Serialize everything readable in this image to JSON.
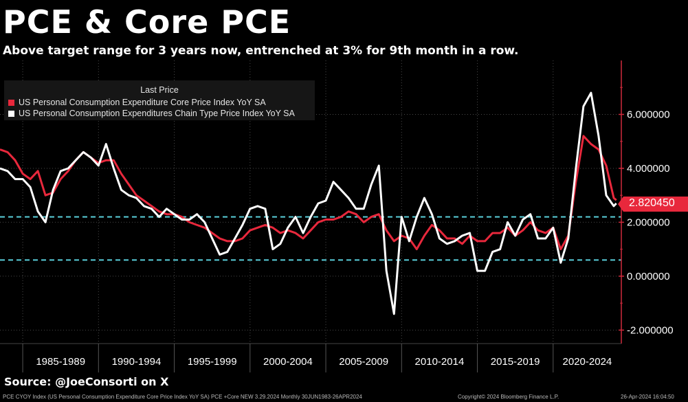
{
  "title": "PCE & Core PCE",
  "subtitle": "Above target range for 3 years now, entrenched at 3% for 9th month in a row.",
  "source": "Source: @JoeConsorti on X",
  "footer": {
    "left": "PCE CYOY Index (US Personal Consumption Expenditure Core Price Index YoY SA) PCE +Core NEW 3.29.2024  Monthly 30JUN1983-26APR2024",
    "center": "Copyright© 2024 Bloomberg Finance L.P.",
    "right": "26-Apr-2024 16:04:50"
  },
  "legend": {
    "header": "Last Price",
    "items": [
      {
        "label": "US Personal Consumption Expenditure Core Price Index YoY SA",
        "color": "#e8283c"
      },
      {
        "label": "US Personal Consumption Expenditures Chain Type Price Index YoY SA",
        "color": "#ffffff"
      }
    ]
  },
  "last_value_label": "2.820450",
  "colors": {
    "core": "#e8283c",
    "headline": "#ffffff",
    "reference": "#5ad0dc",
    "axis": "#d02a3c",
    "grid": "#4a4a4a"
  },
  "chart_data": {
    "type": "line",
    "x_tick_labels": [
      "1985-1989",
      "1990-1994",
      "1995-1999",
      "2000-2004",
      "2005-2009",
      "2010-2014",
      "2015-2019",
      "2020-2024"
    ],
    "y_tick_labels": [
      "6.000000",
      "4.000000",
      "2.000000",
      "0.000000",
      "-2.000000"
    ],
    "xlim": [
      1983.5,
      2024.5
    ],
    "ylim": [
      -2.5,
      8.0
    ],
    "reference_lines": [
      2.2,
      0.6
    ],
    "grid": true,
    "legend_position": "top-left",
    "series": [
      {
        "name": "US Personal Consumption Expenditure Core Price Index YoY SA",
        "color": "#e8283c",
        "points": [
          [
            1983.5,
            4.7
          ],
          [
            1984.0,
            4.6
          ],
          [
            1984.5,
            4.3
          ],
          [
            1985.0,
            3.8
          ],
          [
            1985.5,
            3.6
          ],
          [
            1986.0,
            3.9
          ],
          [
            1986.5,
            3.0
          ],
          [
            1987.0,
            3.1
          ],
          [
            1987.5,
            3.6
          ],
          [
            1988.0,
            3.9
          ],
          [
            1988.5,
            4.3
          ],
          [
            1989.0,
            4.6
          ],
          [
            1989.5,
            4.4
          ],
          [
            1990.0,
            4.2
          ],
          [
            1990.5,
            4.3
          ],
          [
            1991.0,
            4.3
          ],
          [
            1991.5,
            3.8
          ],
          [
            1992.0,
            3.4
          ],
          [
            1992.5,
            3.0
          ],
          [
            1993.0,
            2.8
          ],
          [
            1993.5,
            2.6
          ],
          [
            1994.0,
            2.4
          ],
          [
            1994.5,
            2.3
          ],
          [
            1995.0,
            2.3
          ],
          [
            1995.5,
            2.2
          ],
          [
            1996.0,
            2.0
          ],
          [
            1996.5,
            1.9
          ],
          [
            1997.0,
            1.8
          ],
          [
            1997.5,
            1.6
          ],
          [
            1998.0,
            1.4
          ],
          [
            1998.5,
            1.3
          ],
          [
            1999.0,
            1.3
          ],
          [
            1999.5,
            1.4
          ],
          [
            2000.0,
            1.7
          ],
          [
            2000.5,
            1.8
          ],
          [
            2001.0,
            1.9
          ],
          [
            2001.5,
            1.8
          ],
          [
            2002.0,
            1.6
          ],
          [
            2002.5,
            1.7
          ],
          [
            2003.0,
            1.6
          ],
          [
            2003.5,
            1.4
          ],
          [
            2004.0,
            1.7
          ],
          [
            2004.5,
            2.0
          ],
          [
            2005.0,
            2.1
          ],
          [
            2005.5,
            2.1
          ],
          [
            2006.0,
            2.2
          ],
          [
            2006.5,
            2.4
          ],
          [
            2007.0,
            2.3
          ],
          [
            2007.5,
            2.0
          ],
          [
            2008.0,
            2.2
          ],
          [
            2008.5,
            2.3
          ],
          [
            2009.0,
            1.7
          ],
          [
            2009.5,
            1.3
          ],
          [
            2010.0,
            1.5
          ],
          [
            2010.5,
            1.4
          ],
          [
            2011.0,
            1.0
          ],
          [
            2011.5,
            1.5
          ],
          [
            2012.0,
            1.9
          ],
          [
            2012.5,
            1.7
          ],
          [
            2013.0,
            1.4
          ],
          [
            2013.5,
            1.4
          ],
          [
            2014.0,
            1.2
          ],
          [
            2014.5,
            1.5
          ],
          [
            2015.0,
            1.3
          ],
          [
            2015.5,
            1.3
          ],
          [
            2016.0,
            1.6
          ],
          [
            2016.5,
            1.6
          ],
          [
            2017.0,
            1.8
          ],
          [
            2017.5,
            1.5
          ],
          [
            2018.0,
            1.7
          ],
          [
            2018.5,
            2.0
          ],
          [
            2019.0,
            1.7
          ],
          [
            2019.5,
            1.6
          ],
          [
            2020.0,
            1.8
          ],
          [
            2020.5,
            1.0
          ],
          [
            2021.0,
            1.5
          ],
          [
            2021.5,
            3.5
          ],
          [
            2022.0,
            5.2
          ],
          [
            2022.5,
            4.9
          ],
          [
            2023.0,
            4.7
          ],
          [
            2023.5,
            4.1
          ],
          [
            2024.0,
            2.9
          ],
          [
            2024.17,
            2.82
          ]
        ]
      },
      {
        "name": "US Personal Consumption Expenditures Chain Type Price Index YoY SA",
        "color": "#ffffff",
        "points": [
          [
            1983.5,
            4.0
          ],
          [
            1984.0,
            3.9
          ],
          [
            1984.5,
            3.6
          ],
          [
            1985.0,
            3.6
          ],
          [
            1985.5,
            3.3
          ],
          [
            1986.0,
            2.4
          ],
          [
            1986.5,
            2.0
          ],
          [
            1987.0,
            3.2
          ],
          [
            1987.5,
            3.9
          ],
          [
            1988.0,
            4.0
          ],
          [
            1988.5,
            4.3
          ],
          [
            1989.0,
            4.6
          ],
          [
            1989.5,
            4.4
          ],
          [
            1990.0,
            4.1
          ],
          [
            1990.5,
            4.9
          ],
          [
            1991.0,
            4.0
          ],
          [
            1991.5,
            3.2
          ],
          [
            1992.0,
            3.0
          ],
          [
            1992.5,
            2.9
          ],
          [
            1993.0,
            2.6
          ],
          [
            1993.5,
            2.5
          ],
          [
            1994.0,
            2.2
          ],
          [
            1994.5,
            2.5
          ],
          [
            1995.0,
            2.3
          ],
          [
            1995.5,
            2.1
          ],
          [
            1996.0,
            2.1
          ],
          [
            1996.5,
            2.3
          ],
          [
            1997.0,
            2.0
          ],
          [
            1997.5,
            1.4
          ],
          [
            1998.0,
            0.8
          ],
          [
            1998.5,
            0.9
          ],
          [
            1999.0,
            1.4
          ],
          [
            1999.5,
            1.9
          ],
          [
            2000.0,
            2.5
          ],
          [
            2000.5,
            2.6
          ],
          [
            2001.0,
            2.5
          ],
          [
            2001.5,
            1.0
          ],
          [
            2002.0,
            1.2
          ],
          [
            2002.5,
            1.8
          ],
          [
            2003.0,
            2.2
          ],
          [
            2003.5,
            1.6
          ],
          [
            2004.0,
            2.2
          ],
          [
            2004.5,
            2.7
          ],
          [
            2005.0,
            2.8
          ],
          [
            2005.5,
            3.5
          ],
          [
            2006.0,
            3.2
          ],
          [
            2006.5,
            2.9
          ],
          [
            2007.0,
            2.5
          ],
          [
            2007.5,
            2.5
          ],
          [
            2008.0,
            3.4
          ],
          [
            2008.5,
            4.1
          ],
          [
            2009.0,
            0.2
          ],
          [
            2009.5,
            -1.4
          ],
          [
            2010.0,
            2.2
          ],
          [
            2010.5,
            1.3
          ],
          [
            2011.0,
            2.2
          ],
          [
            2011.5,
            2.9
          ],
          [
            2012.0,
            2.3
          ],
          [
            2012.5,
            1.4
          ],
          [
            2013.0,
            1.2
          ],
          [
            2013.5,
            1.3
          ],
          [
            2014.0,
            1.5
          ],
          [
            2014.5,
            1.6
          ],
          [
            2015.0,
            0.2
          ],
          [
            2015.5,
            0.2
          ],
          [
            2016.0,
            0.9
          ],
          [
            2016.5,
            1.0
          ],
          [
            2017.0,
            2.0
          ],
          [
            2017.5,
            1.5
          ],
          [
            2018.0,
            2.1
          ],
          [
            2018.5,
            2.3
          ],
          [
            2019.0,
            1.4
          ],
          [
            2019.5,
            1.4
          ],
          [
            2020.0,
            1.8
          ],
          [
            2020.5,
            0.5
          ],
          [
            2021.0,
            1.4
          ],
          [
            2021.5,
            4.0
          ],
          [
            2022.0,
            6.3
          ],
          [
            2022.5,
            6.8
          ],
          [
            2023.0,
            5.2
          ],
          [
            2023.5,
            3.0
          ],
          [
            2024.0,
            2.6
          ],
          [
            2024.17,
            2.7
          ]
        ]
      }
    ]
  }
}
